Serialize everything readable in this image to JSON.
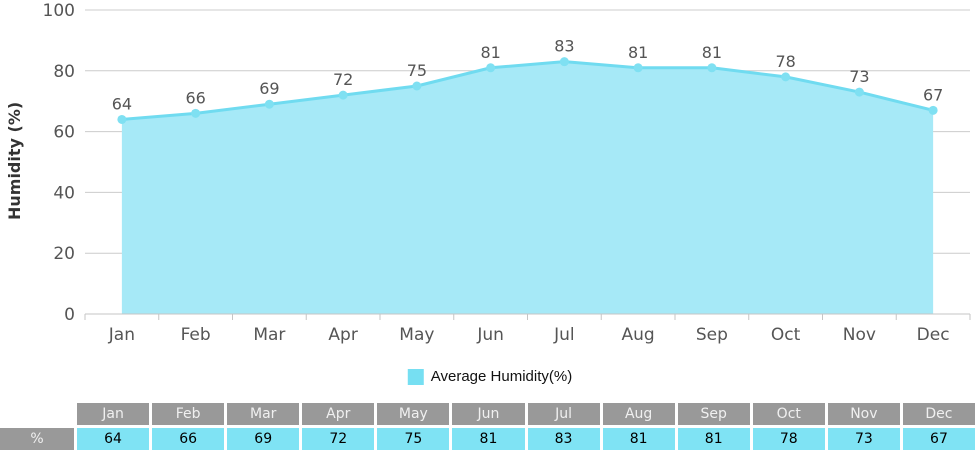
{
  "chart_data": {
    "type": "area",
    "categories": [
      "Jan",
      "Feb",
      "Mar",
      "Apr",
      "May",
      "Jun",
      "Jul",
      "Aug",
      "Sep",
      "Oct",
      "Nov",
      "Dec"
    ],
    "series": [
      {
        "name": "Average Humidity(%)",
        "values": [
          64,
          66,
          69,
          72,
          75,
          81,
          83,
          81,
          81,
          78,
          73,
          67
        ]
      }
    ],
    "title": "",
    "xlabel": "",
    "ylabel": "Humidity (%)",
    "ylim": [
      0,
      100
    ],
    "yticks": [
      0,
      20,
      40,
      60,
      80,
      100
    ],
    "grid": "horizontal",
    "legend_position": "bottom",
    "colors": {
      "area_fill": "#a6e9f7",
      "line": "#70dbf0",
      "marker": "#7fe0f2",
      "gridline": "#cccccc",
      "axis": "#c5c5c5",
      "tick_text": "#555555",
      "point_label_text": "#555555"
    }
  },
  "legend": {
    "label": "Average Humidity(%)",
    "swatch_color": "#76dff2"
  },
  "table": {
    "row_label": "%",
    "columns": [
      "Jan",
      "Feb",
      "Mar",
      "Apr",
      "May",
      "Jun",
      "Jul",
      "Aug",
      "Sep",
      "Oct",
      "Nov",
      "Dec"
    ],
    "values": [
      64,
      66,
      69,
      72,
      75,
      81,
      83,
      81,
      81,
      78,
      73,
      67
    ],
    "header_bg": "#999999",
    "value_bg": "#7fe3f4"
  }
}
